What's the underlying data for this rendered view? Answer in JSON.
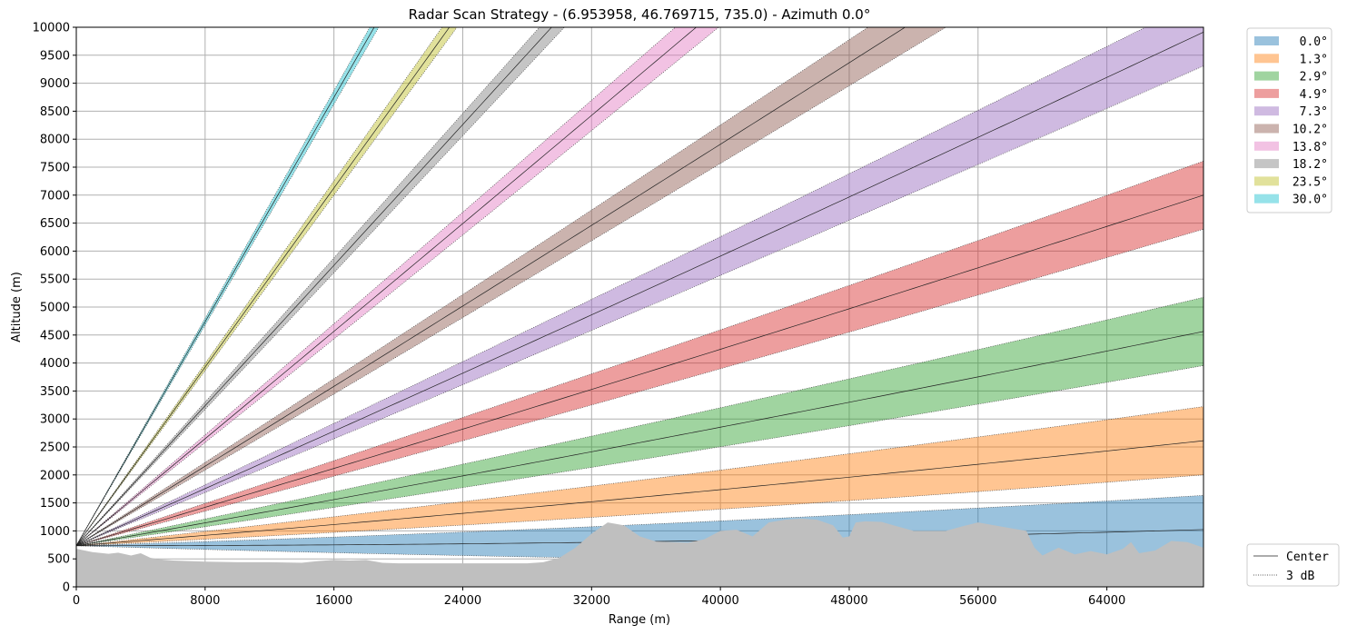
{
  "chart_data": {
    "type": "area",
    "title": "Radar Scan Strategy - (6.953958, 46.769715, 735.0) - Azimuth 0.0°",
    "xlabel": "Range (m)",
    "ylabel": "Altitude (m)",
    "xlim": [
      0,
      70000
    ],
    "ylim": [
      0,
      10000
    ],
    "x_ticks": [
      "0",
      "8000",
      "16000",
      "24000",
      "32000",
      "40000",
      "48000",
      "56000",
      "64000"
    ],
    "y_ticks": [
      "0",
      "500",
      "1000",
      "1500",
      "2000",
      "2500",
      "3000",
      "3500",
      "4000",
      "4500",
      "5000",
      "5500",
      "6000",
      "6500",
      "7000",
      "7500",
      "8000",
      "8500",
      "9000",
      "9500",
      "10000"
    ],
    "grid": true,
    "legend_position": "outside-right",
    "radar_altitude_m": 735.0,
    "beam_max_range_m": 70000,
    "series": [
      {
        "name": "  0.0°",
        "elevation": 0.0,
        "color": "#1f77b4",
        "lower_at_end": 580,
        "center_at_end": 1030,
        "upper_at_end": 1640
      },
      {
        "name": "  1.3°",
        "elevation": 1.3,
        "color": "#ff7f0e",
        "lower_at_end": 2000,
        "center_at_end": 2610,
        "upper_at_end": 3230
      },
      {
        "name": "  2.9°",
        "elevation": 2.9,
        "color": "#2ca02c",
        "lower_at_end": 3950,
        "center_at_end": 4560,
        "upper_at_end": 5180
      },
      {
        "name": "  4.9°",
        "elevation": 4.9,
        "color": "#d62728",
        "lower_at_end": 6400,
        "center_at_end": 6980,
        "upper_at_end": 7620
      },
      {
        "name": "  7.3°",
        "elevation": 7.3,
        "color": "#9467bd",
        "lower_at_end": 9320,
        "center_at_end": 9920,
        "upper_at_end": 10550
      },
      {
        "name": " 10.2°",
        "elevation": 10.2,
        "color": "#8c564b"
      },
      {
        "name": " 13.8°",
        "elevation": 13.8,
        "color": "#e377c2"
      },
      {
        "name": " 18.2°",
        "elevation": 18.2,
        "color": "#7f7f7f"
      },
      {
        "name": " 23.5°",
        "elevation": 23.5,
        "color": "#bcbd22"
      },
      {
        "name": " 30.0°",
        "elevation": 30.0,
        "color": "#17becf"
      }
    ],
    "terrain": {
      "color": "#bfbfbf",
      "x": [
        0,
        1000,
        2000,
        2600,
        3400,
        4000,
        4600,
        5200,
        6000,
        7000,
        8000,
        10000,
        12000,
        14000,
        15000,
        16000,
        17000,
        18000,
        19000,
        20000,
        22000,
        24000,
        26000,
        28000,
        29000,
        30000,
        31000,
        32000,
        33000,
        34000,
        35000,
        36000,
        37000,
        38000,
        39000,
        40000,
        41000,
        42000,
        43000,
        44000,
        45000,
        46000,
        47000,
        47600,
        48000,
        48400,
        49000,
        50000,
        51000,
        52000,
        53000,
        54000,
        55000,
        56000,
        57000,
        58000,
        59000,
        59500,
        60000,
        61000,
        62000,
        63000,
        64000,
        65000,
        65500,
        66000,
        67000,
        68000,
        69000,
        70000
      ],
      "y": [
        680,
        620,
        590,
        610,
        560,
        600,
        520,
        490,
        470,
        460,
        450,
        440,
        440,
        430,
        460,
        480,
        470,
        480,
        430,
        420,
        420,
        420,
        420,
        420,
        440,
        520,
        700,
        950,
        1150,
        1100,
        900,
        810,
        800,
        790,
        850,
        1000,
        1020,
        900,
        1150,
        1200,
        1220,
        1200,
        1100,
        880,
        900,
        1150,
        1170,
        1160,
        1080,
        1000,
        1000,
        1000,
        1080,
        1150,
        1100,
        1050,
        1000,
        700,
        560,
        700,
        580,
        640,
        580,
        680,
        800,
        600,
        650,
        820,
        800,
        700
      ]
    },
    "legend_lines": [
      {
        "name": "Center",
        "style": "solid"
      },
      {
        "name": "3 dB",
        "style": "dotted"
      }
    ],
    "beamwidth_deg": 1.0
  }
}
